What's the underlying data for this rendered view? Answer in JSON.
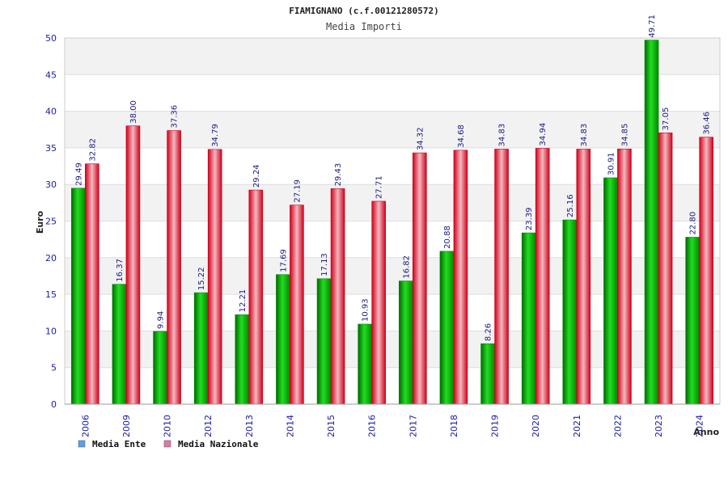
{
  "chart_data": {
    "type": "bar",
    "title": "FIAMIGNANO (c.f.00121280572)",
    "subtitle": "Media Importi",
    "xlabel": "Anno",
    "ylabel": "Euro",
    "ylim": [
      0,
      50
    ],
    "yticks": [
      0,
      5,
      10,
      15,
      20,
      25,
      30,
      35,
      40,
      45,
      50
    ],
    "grid": true,
    "legend_position": "bottom-left",
    "categories": [
      "2006",
      "2009",
      "2010",
      "2012",
      "2013",
      "2014",
      "2015",
      "2016",
      "2017",
      "2018",
      "2019",
      "2020",
      "2021",
      "2022",
      "2023",
      "2024"
    ],
    "series": [
      {
        "name": "Media Ente",
        "color": "#00b000",
        "legend_color": "#5aa0e8",
        "values": [
          29.49,
          16.37,
          9.94,
          15.22,
          12.21,
          17.69,
          17.13,
          10.93,
          16.82,
          20.88,
          8.26,
          23.39,
          25.16,
          30.91,
          49.71,
          22.8
        ],
        "labels": [
          "29.49",
          "16.37",
          "9.94",
          "15.22",
          "12.21",
          "17.69",
          "17.13",
          "10.93",
          "16.82",
          "20.88",
          "8.26",
          "23.39",
          "25.16",
          "30.91",
          "49.71",
          "22.80"
        ]
      },
      {
        "name": "Media Nazionale",
        "color": "#e8102a",
        "legend_color": "#e07aa8",
        "values": [
          32.82,
          38.0,
          37.36,
          34.79,
          29.24,
          27.19,
          29.43,
          27.71,
          34.32,
          34.68,
          34.83,
          34.94,
          34.83,
          34.85,
          37.05,
          36.46
        ],
        "labels": [
          "32.82",
          "38.00",
          "37.36",
          "34.79",
          "29.24",
          "27.19",
          "29.43",
          "27.71",
          "34.32",
          "34.68",
          "34.83",
          "34.94",
          "34.83",
          "34.85",
          "37.05",
          "36.46"
        ]
      }
    ]
  }
}
